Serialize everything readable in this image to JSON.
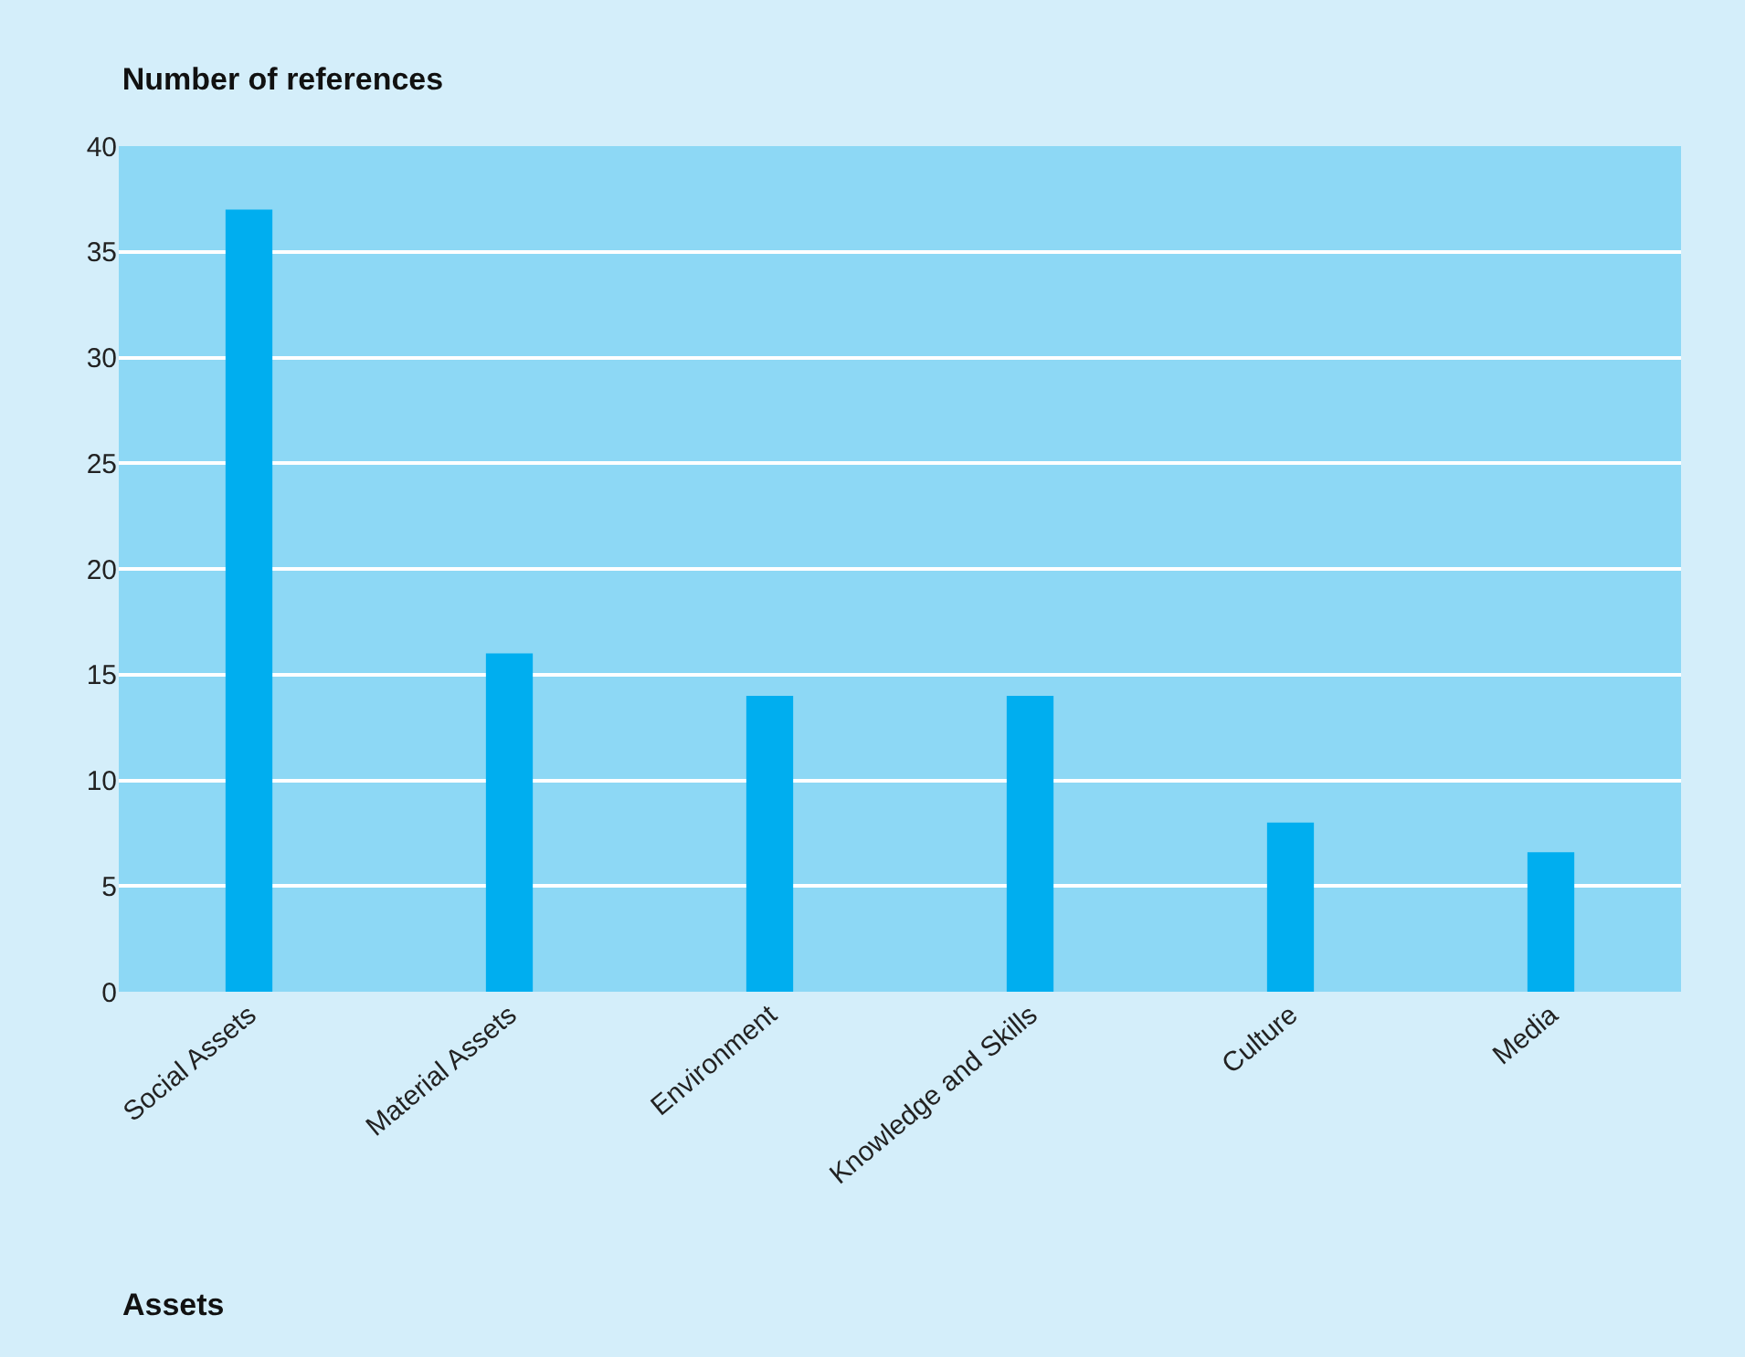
{
  "chart_data": {
    "type": "bar",
    "title": "Number of references",
    "xlabel": "Assets",
    "categories": [
      "Social Assets",
      "Material Assets",
      "Environment",
      "Knowledge and Skills",
      "Culture",
      "Media"
    ],
    "values": [
      37,
      16,
      14,
      14,
      8,
      6.6
    ],
    "color": "#00aeef",
    "ylim": [
      0,
      40
    ],
    "yticks": [
      0,
      5,
      10,
      15,
      20,
      25,
      30,
      35,
      40
    ],
    "grid": "y",
    "legend": false
  }
}
